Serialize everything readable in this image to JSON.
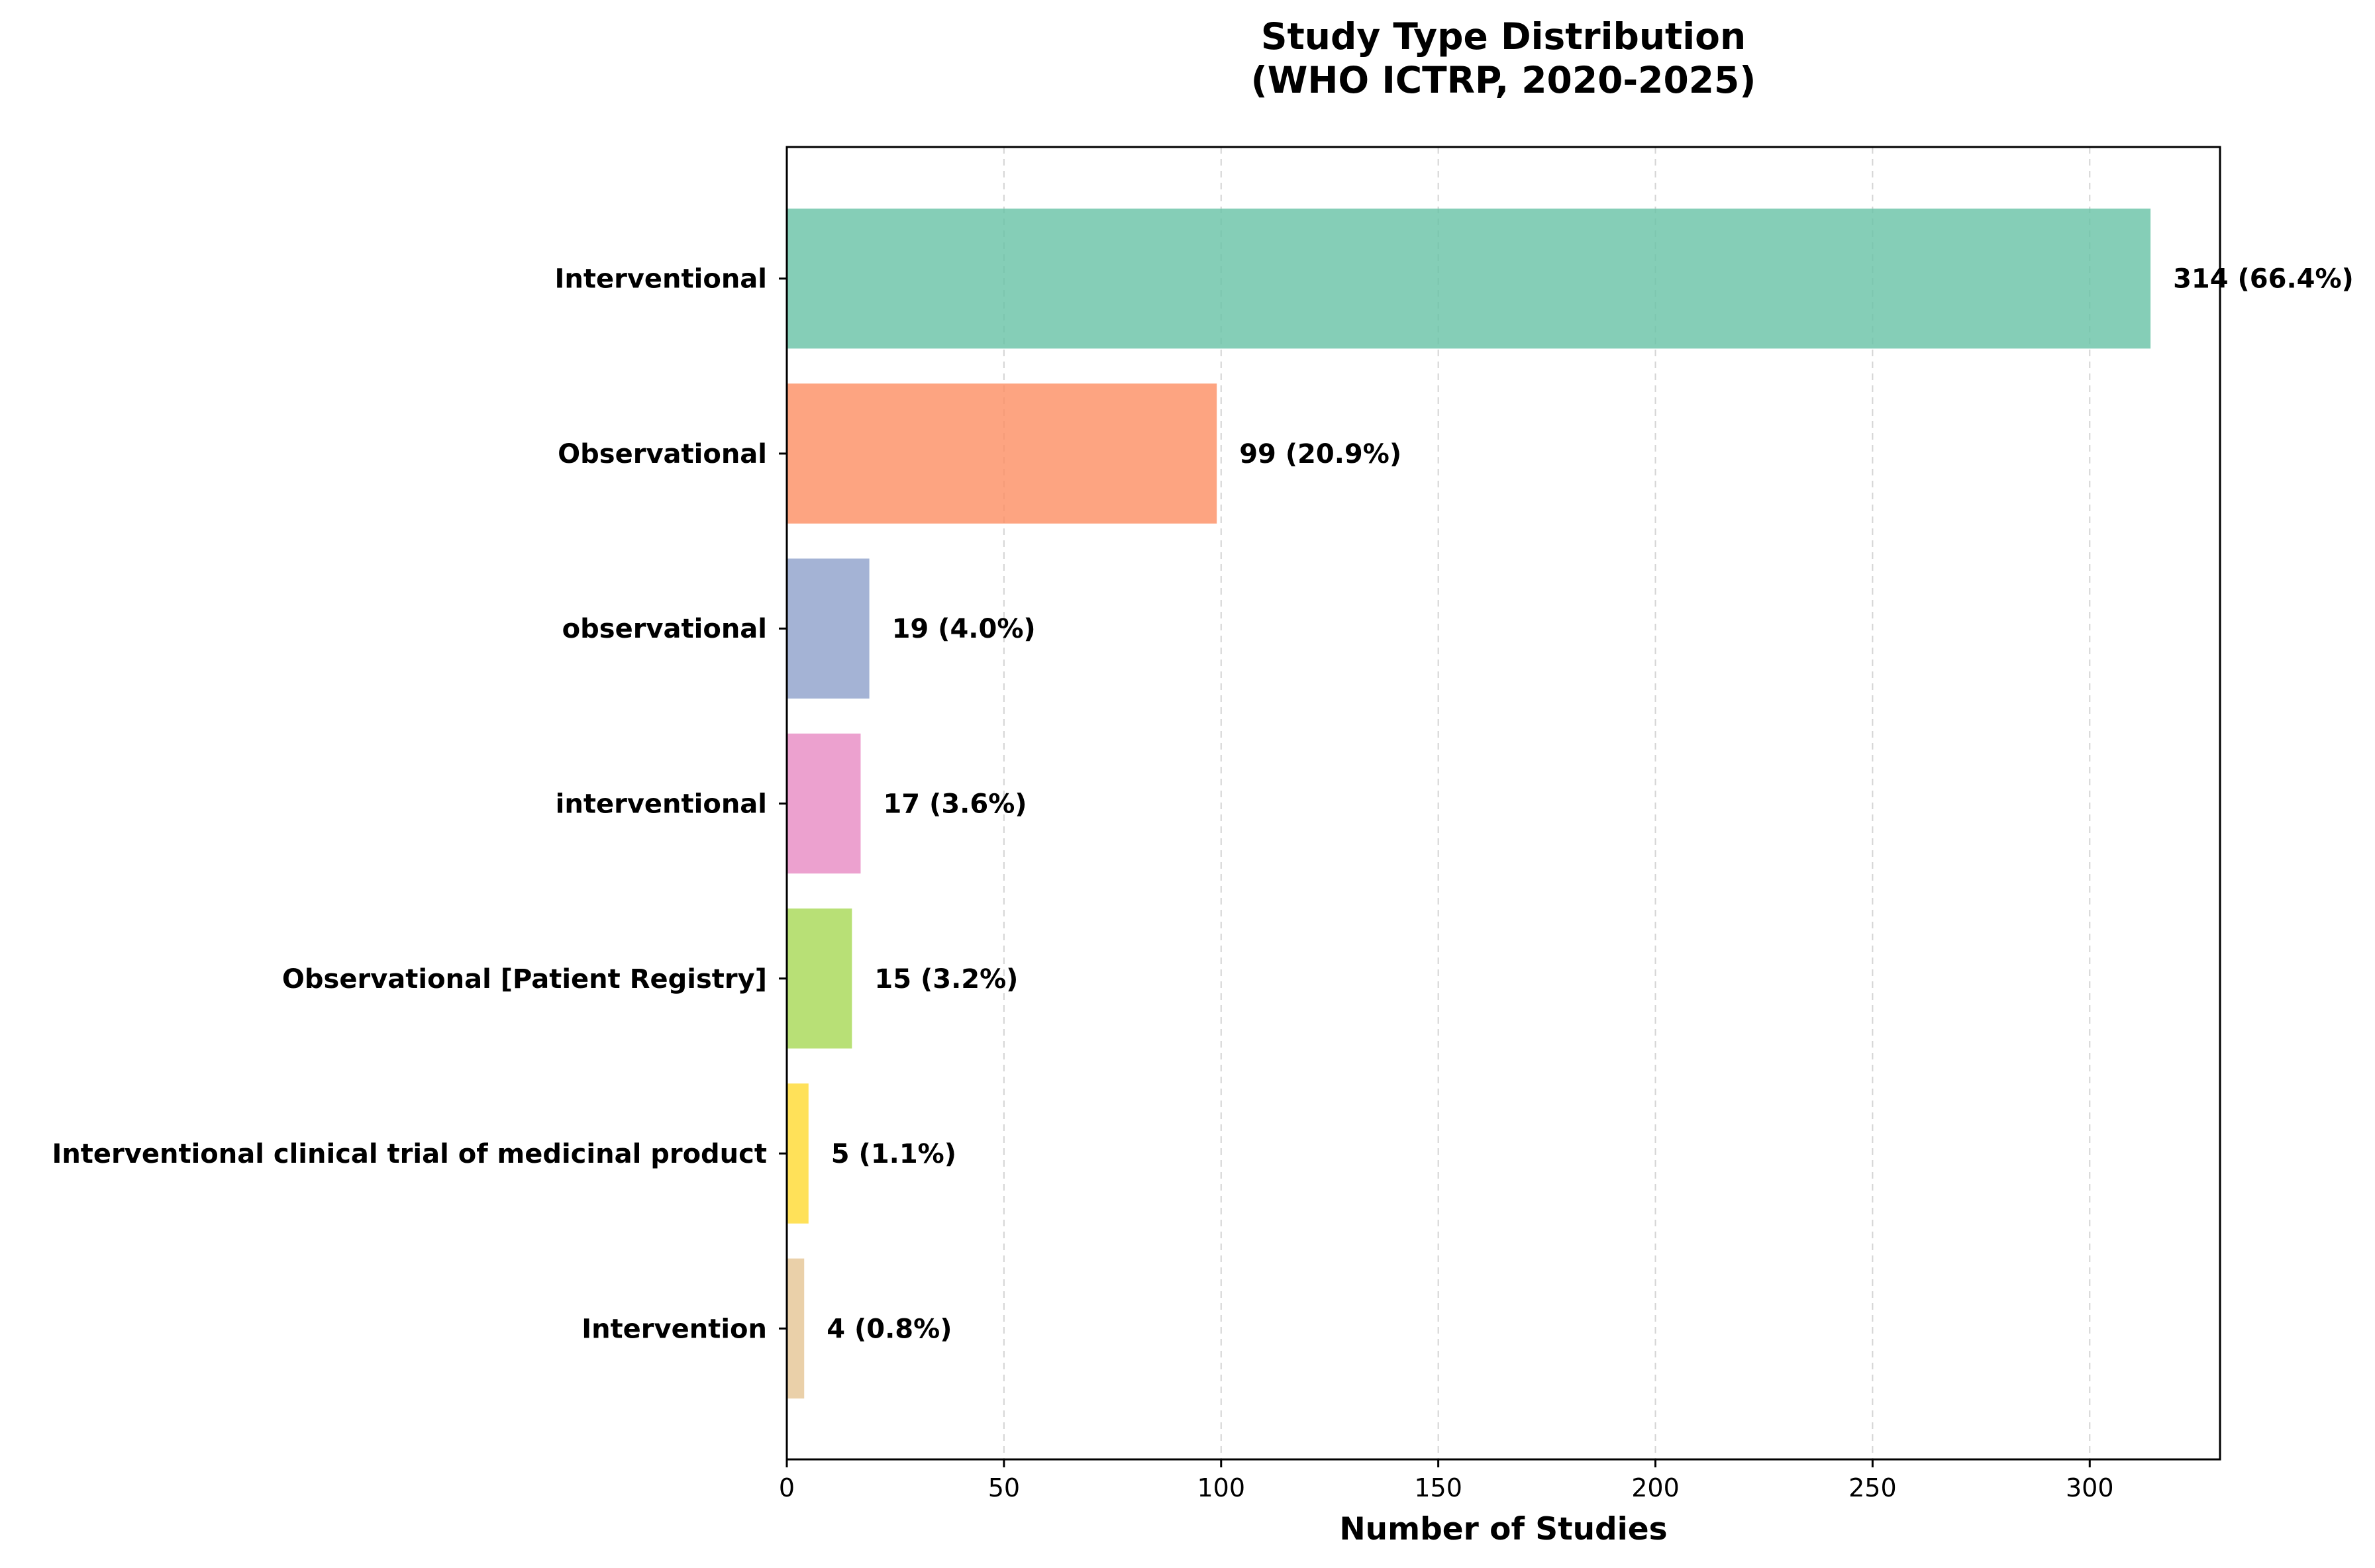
{
  "chart_data": {
    "type": "bar",
    "orientation": "horizontal",
    "title": "Study Type Distribution\n(WHO ICTRP, 2020-2025)",
    "xlabel": "Number of Studies",
    "ylabel": "",
    "xlim": [
      0,
      330
    ],
    "x_ticks": [
      0,
      50,
      100,
      150,
      200,
      250,
      300
    ],
    "grid": "x-dashed",
    "categories": [
      "Interventional",
      "Observational",
      "observational",
      "interventional",
      "Observational [Patient Registry]",
      "Interventional clinical trial of medicinal product",
      "Intervention"
    ],
    "values": [
      314,
      99,
      19,
      17,
      15,
      5,
      4
    ],
    "data_labels": [
      "314 (66.4%)",
      "99 (20.9%)",
      "19 (4.0%)",
      "17 (3.6%)",
      "15 (3.2%)",
      "5 (1.1%)",
      "4 (0.8%)"
    ],
    "colors": [
      "#66c2a5",
      "#fc8d62",
      "#8da0cb",
      "#e78ac3",
      "#a6d854",
      "#ffd92f",
      "#e5c494"
    ]
  }
}
